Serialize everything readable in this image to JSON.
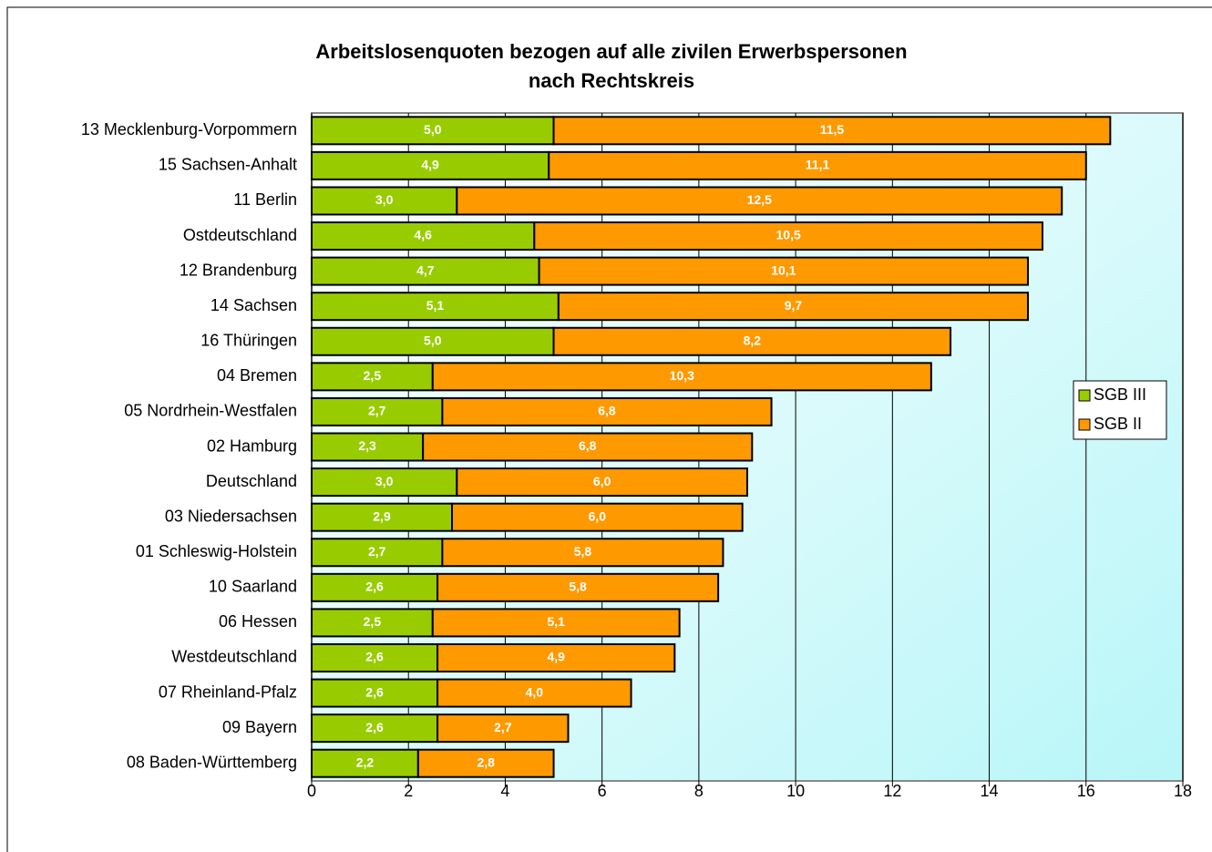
{
  "chart_data": {
    "type": "stacked-bar-horizontal",
    "title": [
      "Arbeitslosenquoten bezogen auf alle zivilen Erwerbspersonen",
      "nach Rechtskreis"
    ],
    "categories": [
      "13 Mecklenburg-Vorpommern",
      "15 Sachsen-Anhalt",
      "11 Berlin",
      "Ostdeutschland",
      "12 Brandenburg",
      "14 Sachsen",
      "16 Thüringen",
      "04 Bremen",
      "05 Nordrhein-Westfalen",
      "02 Hamburg",
      "Deutschland",
      "03 Niedersachsen",
      "01 Schleswig-Holstein",
      "10 Saarland",
      "06 Hessen",
      "Westdeutschland",
      "07 Rheinland-Pfalz",
      "09 Bayern",
      "08 Baden-Württemberg"
    ],
    "series": [
      {
        "name": "SGB III",
        "color": "#99cc00",
        "values": [
          5.0,
          4.9,
          3.0,
          4.6,
          4.7,
          5.1,
          5.0,
          2.5,
          2.7,
          2.3,
          3.0,
          2.9,
          2.7,
          2.6,
          2.5,
          2.6,
          2.6,
          2.6,
          2.2
        ],
        "value_labels": [
          "5,0",
          "4,9",
          "3,0",
          "4,6",
          "4,7",
          "5,1",
          "5,0",
          "2,5",
          "2,7",
          "2,3",
          "3,0",
          "2,9",
          "2,7",
          "2,6",
          "2,5",
          "2,6",
          "2,6",
          "2,6",
          "2,2"
        ]
      },
      {
        "name": "SGB II",
        "color": "#ff9900",
        "values": [
          11.5,
          11.1,
          12.5,
          10.5,
          10.1,
          9.7,
          8.2,
          10.3,
          6.8,
          6.8,
          6.0,
          6.0,
          5.8,
          5.8,
          5.1,
          4.9,
          4.0,
          2.7,
          2.8
        ],
        "value_labels": [
          "11,5",
          "11,1",
          "12,5",
          "10,5",
          "10,1",
          "9,7",
          "8,2",
          "10,3",
          "6,8",
          "6,8",
          "6,0",
          "6,0",
          "5,8",
          "5,8",
          "5,1",
          "4,9",
          "4,0",
          "2,7",
          "2,8"
        ]
      }
    ],
    "xlim": [
      0,
      18
    ],
    "xticks": [
      0,
      2,
      4,
      6,
      8,
      10,
      12,
      14,
      16,
      18
    ],
    "grid": true,
    "legend": "right"
  }
}
